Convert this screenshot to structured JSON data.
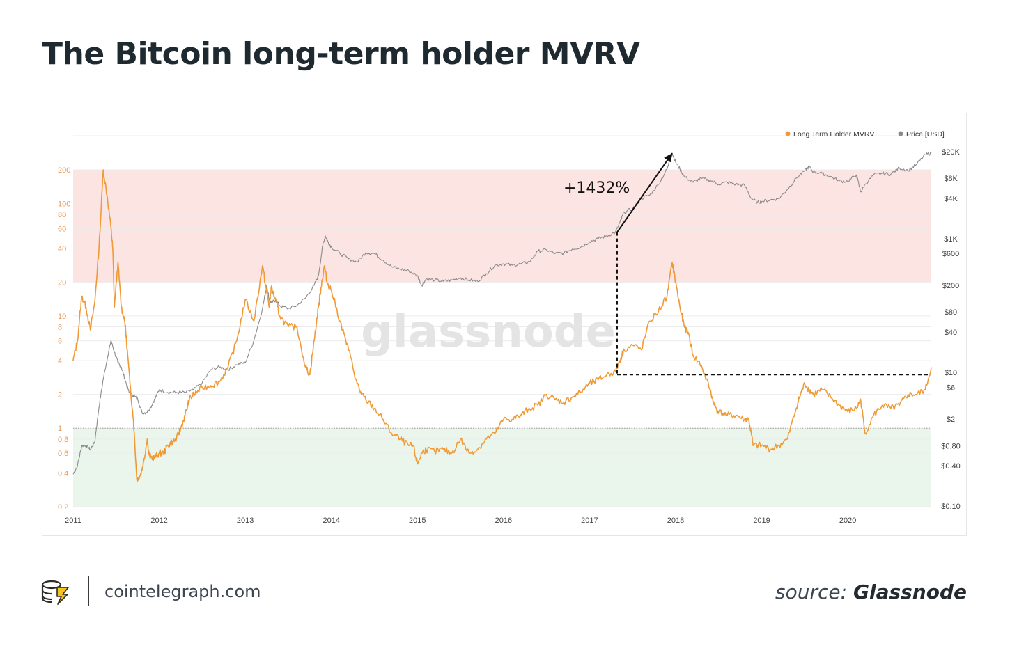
{
  "page": {
    "title": "The Bitcoin long-term holder MVRV",
    "site": "cointelegraph.com",
    "source_label": "source:",
    "source_name": "Glassnode"
  },
  "colors": {
    "mvrv": "#f09a36",
    "price": "#8a8a8a",
    "red_zone": "#fbe4e2",
    "green_zone": "#eaf5ec",
    "left_axis_text": "#e89a5a",
    "right_axis_text": "#444444",
    "annotation": "#111111"
  },
  "chart_data": {
    "type": "line",
    "watermark": "glassnode",
    "annotation": "+1432%",
    "legend": {
      "placement": "top-right",
      "items": [
        {
          "label": "Long Term Holder MVRV",
          "color": "#f09a36"
        },
        {
          "label": "Price [USD]",
          "color": "#8a8a8a"
        }
      ]
    },
    "x_ticks": [
      "2011",
      "2012",
      "2013",
      "2014",
      "2015",
      "2016",
      "2017",
      "2018",
      "2019",
      "2020"
    ],
    "x_range": [
      2011.0,
      2020.97
    ],
    "left_axis": {
      "scale": "log",
      "range": [
        0.2,
        400
      ],
      "ticks": [
        0.2,
        0.4,
        0.6,
        0.8,
        1,
        2,
        4,
        6,
        8,
        10,
        20,
        40,
        60,
        80,
        100,
        200
      ],
      "tick_labels": [
        "0.2",
        "0.4",
        "0.6",
        "0.8",
        "1",
        "2",
        "4",
        "6",
        "8",
        "10",
        "20",
        "40",
        "60",
        "80",
        "100",
        "200"
      ]
    },
    "right_axis": {
      "scale": "log",
      "range": [
        0.1,
        20000
      ],
      "ticks": [
        0.1,
        0.4,
        0.8,
        2,
        6,
        10,
        40,
        80,
        200,
        600,
        1000,
        4000,
        8000,
        20000
      ],
      "tick_labels": [
        "$0.10",
        "$0.40",
        "$0.80",
        "$2",
        "$6",
        "$10",
        "$40",
        "$80",
        "$200",
        "$600",
        "$1K",
        "$4K",
        "$8K",
        "$20K"
      ]
    },
    "zones": [
      {
        "from": 20,
        "to": 200,
        "color": "#fbe4e2"
      },
      {
        "from": 0.2,
        "to": 1,
        "color": "#eaf5ec"
      }
    ],
    "reference_line": 1,
    "series": [
      {
        "name": "Long Term Holder MVRV",
        "axis": "left",
        "x": [
          2011.0,
          2011.05,
          2011.1,
          2011.15,
          2011.2,
          2011.25,
          2011.3,
          2011.35,
          2011.4,
          2011.44,
          2011.46,
          2011.48,
          2011.52,
          2011.56,
          2011.6,
          2011.62,
          2011.66,
          2011.7,
          2011.74,
          2011.78,
          2011.82,
          2011.86,
          2011.88,
          2011.9,
          2011.95,
          2012.0,
          2012.05,
          2012.1,
          2012.15,
          2012.2,
          2012.25,
          2012.3,
          2012.35,
          2012.4,
          2012.5,
          2012.6,
          2012.7,
          2012.8,
          2012.9,
          2013.0,
          2013.1,
          2013.2,
          2013.25,
          2013.28,
          2013.3,
          2013.35,
          2013.4,
          2013.5,
          2013.6,
          2013.7,
          2013.75,
          2013.8,
          2013.85,
          2013.88,
          2013.92,
          2013.95,
          2014.0,
          2014.1,
          2014.2,
          2014.3,
          2014.35,
          2014.4,
          2014.5,
          2014.6,
          2014.7,
          2014.8,
          2014.9,
          2014.95,
          2015.0,
          2015.05,
          2015.1,
          2015.2,
          2015.3,
          2015.4,
          2015.5,
          2015.6,
          2015.7,
          2015.8,
          2015.9,
          2016.0,
          2016.1,
          2016.2,
          2016.3,
          2016.4,
          2016.5,
          2016.6,
          2016.7,
          2016.8,
          2016.9,
          2017.0,
          2017.1,
          2017.2,
          2017.3,
          2017.35,
          2017.4,
          2017.5,
          2017.6,
          2017.7,
          2017.8,
          2017.9,
          2017.96,
          2018.0,
          2018.05,
          2018.1,
          2018.15,
          2018.2,
          2018.3,
          2018.4,
          2018.45,
          2018.5,
          2018.6,
          2018.7,
          2018.8,
          2018.85,
          2018.9,
          2019.0,
          2019.1,
          2019.2,
          2019.3,
          2019.4,
          2019.45,
          2019.5,
          2019.55,
          2019.6,
          2019.7,
          2019.8,
          2019.9,
          2020.0,
          2020.1,
          2020.15,
          2020.2,
          2020.3,
          2020.4,
          2020.5,
          2020.6,
          2020.7,
          2020.8,
          2020.9,
          2020.97
        ],
        "y": [
          4.0,
          6.0,
          15.0,
          12.0,
          7.5,
          13.0,
          40.0,
          200.0,
          110.0,
          60.0,
          40.0,
          12.0,
          30.0,
          12.0,
          9.0,
          6.0,
          2.5,
          1.2,
          0.35,
          0.38,
          0.5,
          0.8,
          0.6,
          0.55,
          0.55,
          0.6,
          0.6,
          0.7,
          0.75,
          0.8,
          1.0,
          1.3,
          1.8,
          2.0,
          2.3,
          2.4,
          2.6,
          3.5,
          6.0,
          14.0,
          9.0,
          28.0,
          16.0,
          12.0,
          18.0,
          14.0,
          10.0,
          8.0,
          8.0,
          3.5,
          3.0,
          6.0,
          12.0,
          18.0,
          28.0,
          20.0,
          17.0,
          9.0,
          5.0,
          2.5,
          2.0,
          1.8,
          1.5,
          1.2,
          0.9,
          0.8,
          0.7,
          0.7,
          0.48,
          0.6,
          0.65,
          0.62,
          0.65,
          0.6,
          0.8,
          0.6,
          0.65,
          0.8,
          0.9,
          1.2,
          1.2,
          1.3,
          1.5,
          1.6,
          2.0,
          1.8,
          1.7,
          1.9,
          2.1,
          2.5,
          2.7,
          3.0,
          3.2,
          4.0,
          5.0,
          5.5,
          5.0,
          9.0,
          11.0,
          15.0,
          30.0,
          20.0,
          12.0,
          8.0,
          7.0,
          4.5,
          3.6,
          2.2,
          1.6,
          1.4,
          1.3,
          1.3,
          1.2,
          1.2,
          0.7,
          0.7,
          0.65,
          0.7,
          0.8,
          1.5,
          2.0,
          2.5,
          2.2,
          2.0,
          2.2,
          1.9,
          1.6,
          1.4,
          1.5,
          1.8,
          0.9,
          1.3,
          1.6,
          1.5,
          1.6,
          2.0,
          2.0,
          2.2,
          3.5
        ]
      },
      {
        "name": "Price [USD]",
        "axis": "right",
        "x": [
          2011.0,
          2011.05,
          2011.1,
          2011.15,
          2011.2,
          2011.25,
          2011.3,
          2011.35,
          2011.4,
          2011.44,
          2011.48,
          2011.52,
          2011.56,
          2011.6,
          2011.65,
          2011.7,
          2011.75,
          2011.8,
          2011.85,
          2011.9,
          2011.95,
          2012.0,
          2012.1,
          2012.2,
          2012.3,
          2012.4,
          2012.5,
          2012.6,
          2012.7,
          2012.8,
          2012.9,
          2013.0,
          2013.1,
          2013.2,
          2013.25,
          2013.28,
          2013.3,
          2013.35,
          2013.4,
          2013.5,
          2013.6,
          2013.7,
          2013.8,
          2013.85,
          2013.9,
          2013.93,
          2013.96,
          2014.0,
          2014.1,
          2014.2,
          2014.3,
          2014.4,
          2014.5,
          2014.6,
          2014.7,
          2014.8,
          2014.9,
          2015.0,
          2015.05,
          2015.1,
          2015.2,
          2015.3,
          2015.4,
          2015.5,
          2015.6,
          2015.7,
          2015.8,
          2015.9,
          2016.0,
          2016.1,
          2016.2,
          2016.3,
          2016.4,
          2016.5,
          2016.6,
          2016.7,
          2016.8,
          2016.9,
          2017.0,
          2017.1,
          2017.2,
          2017.3,
          2017.35,
          2017.4,
          2017.5,
          2017.6,
          2017.7,
          2017.8,
          2017.9,
          2017.96,
          2018.0,
          2018.05,
          2018.1,
          2018.2,
          2018.3,
          2018.4,
          2018.5,
          2018.6,
          2018.7,
          2018.8,
          2018.88,
          2018.95,
          2019.0,
          2019.1,
          2019.2,
          2019.3,
          2019.4,
          2019.5,
          2019.55,
          2019.6,
          2019.7,
          2019.8,
          2019.9,
          2020.0,
          2020.1,
          2020.15,
          2020.2,
          2020.3,
          2020.4,
          2020.5,
          2020.6,
          2020.7,
          2020.8,
          2020.9,
          2020.97
        ],
        "y": [
          0.3,
          0.4,
          0.8,
          0.8,
          0.7,
          0.9,
          3.0,
          8.0,
          17.0,
          30.0,
          20.0,
          14.0,
          12.0,
          8.0,
          5.0,
          4.5,
          4.0,
          2.5,
          2.5,
          3.0,
          4.0,
          5.5,
          5.0,
          5.0,
          5.0,
          5.5,
          7.0,
          11.0,
          12.0,
          11.0,
          13.0,
          14.0,
          30.0,
          90.0,
          200.0,
          120.0,
          110.0,
          120.0,
          100.0,
          90.0,
          100.0,
          130.0,
          200.0,
          280.0,
          800.0,
          1100.0,
          900.0,
          750.0,
          600.0,
          500.0,
          450.0,
          620.0,
          600.0,
          480.0,
          380.0,
          350.0,
          330.0,
          280.0,
          200.0,
          250.0,
          240.0,
          230.0,
          240.0,
          260.0,
          240.0,
          230.0,
          300.0,
          400.0,
          420.0,
          400.0,
          420.0,
          450.0,
          650.0,
          680.0,
          600.0,
          610.0,
          700.0,
          750.0,
          900.0,
          1000.0,
          1100.0,
          1250.0,
          1700.0,
          2500.0,
          2800.0,
          4000.0,
          4500.0,
          6500.0,
          11000.0,
          19000.0,
          14000.0,
          11000.0,
          8500.0,
          7000.0,
          8000.0,
          7500.0,
          6500.0,
          7000.0,
          6500.0,
          6300.0,
          4000.0,
          3500.0,
          3600.0,
          3800.0,
          4000.0,
          5500.0,
          8000.0,
          10500.0,
          12000.0,
          10000.0,
          9500.0,
          8500.0,
          7300.0,
          7200.0,
          9000.0,
          5000.0,
          6500.0,
          9000.0,
          9500.0,
          9200.0,
          11500.0,
          10500.0,
          13000.0,
          18000.0,
          19000.0
        ]
      }
    ],
    "annotations": {
      "arrow_from": {
        "x": 2017.32,
        "y_price": 1250
      },
      "arrow_to": {
        "x": 2017.96,
        "y_price": 19000
      },
      "dashed_vertical": {
        "x": 2017.32,
        "y_from_mvrv": 3.0,
        "y_to_price": 1250
      },
      "dashed_horizontal": {
        "y_mvrv": 3.0,
        "x_from": 2017.32,
        "x_to": 2020.97
      }
    }
  }
}
